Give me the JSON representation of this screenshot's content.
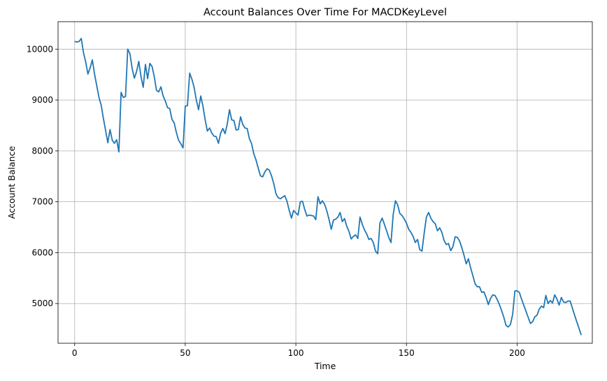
{
  "chart_data": {
    "type": "line",
    "title": "Account Balances Over Time For MACDKeyLevel",
    "xlabel": "Time",
    "ylabel": "Account Balance",
    "xlim": [
      -7.5,
      234
    ],
    "ylim": [
      4220,
      10540
    ],
    "xticks": [
      0,
      50,
      100,
      150,
      200
    ],
    "yticks": [
      5000,
      6000,
      7000,
      8000,
      9000,
      10000
    ],
    "grid": true,
    "legend": "none",
    "series": [
      {
        "color": "#1f77b4",
        "x_start": 0,
        "x_step": 1,
        "values": [
          10150,
          10140,
          10150,
          10210,
          9930,
          9750,
          9510,
          9630,
          9790,
          9510,
          9280,
          9050,
          8900,
          8640,
          8400,
          8160,
          8420,
          8210,
          8150,
          8220,
          7980,
          9150,
          9050,
          9070,
          10000,
          9910,
          9620,
          9430,
          9560,
          9760,
          9460,
          9250,
          9700,
          9420,
          9720,
          9660,
          9460,
          9190,
          9160,
          9260,
          9080,
          8980,
          8850,
          8830,
          8620,
          8550,
          8360,
          8210,
          8140,
          8060,
          8880,
          8890,
          9530,
          9410,
          9250,
          9000,
          8810,
          9080,
          8880,
          8610,
          8390,
          8450,
          8350,
          8290,
          8280,
          8150,
          8350,
          8440,
          8340,
          8530,
          8810,
          8610,
          8600,
          8410,
          8420,
          8670,
          8520,
          8450,
          8440,
          8240,
          8140,
          7940,
          7820,
          7660,
          7510,
          7490,
          7590,
          7650,
          7620,
          7510,
          7360,
          7160,
          7080,
          7060,
          7090,
          7120,
          7010,
          6830,
          6680,
          6830,
          6780,
          6740,
          7000,
          7010,
          6850,
          6720,
          6740,
          6730,
          6720,
          6650,
          7100,
          6960,
          7020,
          6950,
          6820,
          6650,
          6460,
          6640,
          6660,
          6700,
          6790,
          6610,
          6670,
          6520,
          6420,
          6270,
          6320,
          6350,
          6280,
          6700,
          6560,
          6450,
          6370,
          6260,
          6280,
          6200,
          6030,
          5980,
          6580,
          6680,
          6560,
          6430,
          6300,
          6200,
          6750,
          7020,
          6940,
          6770,
          6730,
          6660,
          6580,
          6460,
          6400,
          6320,
          6200,
          6260,
          6060,
          6030,
          6380,
          6700,
          6790,
          6680,
          6610,
          6570,
          6430,
          6490,
          6400,
          6240,
          6160,
          6180,
          6040,
          6120,
          6310,
          6300,
          6230,
          6100,
          5950,
          5780,
          5880,
          5700,
          5550,
          5390,
          5330,
          5330,
          5220,
          5230,
          5120,
          4980,
          5100,
          5170,
          5160,
          5080,
          4980,
          4860,
          4730,
          4570,
          4540,
          4590,
          4790,
          5250,
          5250,
          5220,
          5090,
          4970,
          4850,
          4730,
          4610,
          4640,
          4740,
          4770,
          4890,
          4950,
          4920,
          5160,
          5000,
          5060,
          5010,
          5170,
          5090,
          4970,
          5120,
          5030,
          5020,
          5050,
          5050,
          4910,
          4770,
          4640,
          4510,
          4380
        ]
      }
    ]
  }
}
